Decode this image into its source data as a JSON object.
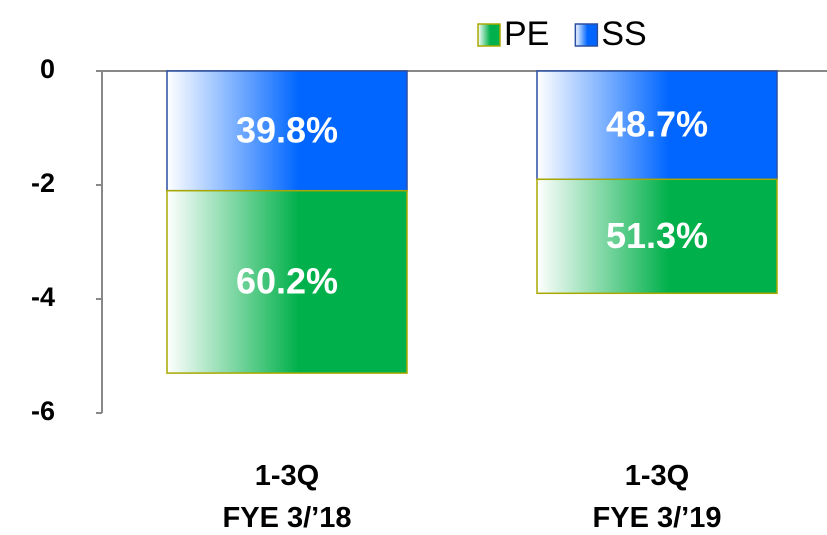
{
  "chart_data": {
    "type": "stacked_bar",
    "categories": [
      "1-3Q\nFYE 3/’18",
      "1-3Q\nFYE 3/’19"
    ],
    "series": [
      {
        "name": "PE",
        "color": "#00b04a",
        "values": [
          -3.2,
          -2.0
        ],
        "value_labels": [
          "60.2%",
          "51.3%"
        ]
      },
      {
        "name": "SS",
        "color": "#0066ff",
        "values": [
          -2.1,
          -1.9
        ],
        "value_labels": [
          "39.8%",
          "48.7%"
        ]
      }
    ],
    "ylim": [
      -6,
      0
    ],
    "yticks": [
      0,
      -2,
      -4,
      -6
    ],
    "legend": "top-right"
  }
}
